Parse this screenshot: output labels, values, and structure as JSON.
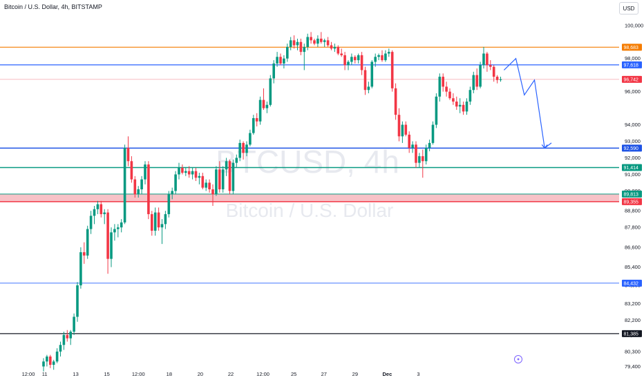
{
  "header": {
    "title": "Bitcoin / U.S. Dollar, 4h, BITSTAMP",
    "currency_button": "USD"
  },
  "watermark": {
    "symbol": "BTCUSD, 4h",
    "name": "Bitcoin / U.S. Dollar"
  },
  "colors": {
    "up": "#089981",
    "down": "#f23645",
    "grid": "#f0f3fa",
    "forecast": "#2962ff"
  },
  "chart_data": {
    "type": "candlestick",
    "title": "Bitcoin / U.S. Dollar, 4h, BITSTAMP",
    "y_axis": {
      "position": "right",
      "tick_labels": [
        "100,000",
        "98,000",
        "96,000",
        "94,000",
        "93,000",
        "92,000",
        "91,000",
        "90,000",
        "88,800",
        "87,800",
        "86,600",
        "85,400",
        "84,300",
        "83,200",
        "82,200",
        "81,300",
        "80,300",
        "79,400"
      ],
      "range": [
        79000,
        100700
      ]
    },
    "x_axis": {
      "tick_labels": [
        "12:00",
        "11",
        "13",
        "15",
        "12:00",
        "18",
        "20",
        "22",
        "12:00",
        "25",
        "27",
        "29",
        "Dec",
        "3"
      ],
      "tick_positions": [
        0.0,
        4.83,
        14.0,
        23.2,
        32.5,
        41.6,
        50.8,
        59.8,
        69.3,
        78.4,
        87.3,
        96.5,
        106.0,
        115.2
      ],
      "bold_labels": [
        "Dec"
      ]
    },
    "series": [
      {
        "name": "BTCUSD",
        "ohlc": [
          [
            79400,
            79900,
            79100,
            79700
          ],
          [
            79700,
            80100,
            79400,
            80000
          ],
          [
            80000,
            80100,
            79300,
            79500
          ],
          [
            79500,
            79800,
            79200,
            79700
          ],
          [
            79700,
            80500,
            79600,
            80300
          ],
          [
            80300,
            80900,
            80000,
            80700
          ],
          [
            80700,
            81500,
            80400,
            81300
          ],
          [
            81300,
            81600,
            80900,
            81100
          ],
          [
            81100,
            81600,
            80700,
            81500
          ],
          [
            81500,
            82600,
            81300,
            82400
          ],
          [
            82400,
            84500,
            82100,
            84300
          ],
          [
            84300,
            86600,
            84100,
            86300
          ],
          [
            86300,
            86900,
            85600,
            86100
          ],
          [
            86100,
            87900,
            85900,
            87700
          ],
          [
            87700,
            88800,
            87400,
            88500
          ],
          [
            88500,
            89100,
            88000,
            88900
          ],
          [
            88900,
            89400,
            88600,
            89200
          ],
          [
            89200,
            89400,
            88400,
            88600
          ],
          [
            88600,
            88900,
            88000,
            88700
          ],
          [
            88700,
            88900,
            85000,
            85900
          ],
          [
            85900,
            87800,
            85400,
            87500
          ],
          [
            87500,
            88000,
            87000,
            87700
          ],
          [
            87700,
            88000,
            87200,
            87800
          ],
          [
            87800,
            88300,
            87500,
            88100
          ],
          [
            88100,
            92800,
            88000,
            92600
          ],
          [
            92600,
            93300,
            91500,
            91800
          ],
          [
            91800,
            92100,
            90500,
            90700
          ],
          [
            90700,
            90900,
            89600,
            89800
          ],
          [
            89800,
            90300,
            89600,
            90100
          ],
          [
            90100,
            90900,
            89800,
            90700
          ],
          [
            90700,
            91800,
            90400,
            91600
          ],
          [
            91600,
            91800,
            88300,
            88600
          ],
          [
            88600,
            88800,
            87300,
            87600
          ],
          [
            87600,
            89000,
            87300,
            88700
          ],
          [
            88700,
            89000,
            87600,
            87800
          ],
          [
            87800,
            88300,
            86800,
            88000
          ],
          [
            88000,
            88800,
            87700,
            88600
          ],
          [
            88600,
            90000,
            88400,
            89800
          ],
          [
            89800,
            90200,
            89500,
            90000
          ],
          [
            90000,
            91200,
            89800,
            91000
          ],
          [
            91000,
            91700,
            90700,
            91400
          ],
          [
            91400,
            91600,
            91000,
            91100
          ],
          [
            91100,
            91400,
            90900,
            91200
          ],
          [
            91200,
            91500,
            90800,
            91000
          ],
          [
            91000,
            91400,
            90700,
            91200
          ],
          [
            91200,
            91400,
            90600,
            90800
          ],
          [
            90800,
            91100,
            90400,
            90900
          ],
          [
            90900,
            91100,
            90100,
            90200
          ],
          [
            90200,
            90700,
            90000,
            90500
          ],
          [
            90500,
            90700,
            89900,
            90100
          ],
          [
            90100,
            90400,
            89100,
            89800
          ],
          [
            89800,
            91500,
            89700,
            91300
          ],
          [
            91300,
            91800,
            89900,
            90100
          ],
          [
            90100,
            91500,
            89900,
            91300
          ],
          [
            91300,
            92000,
            90900,
            91800
          ],
          [
            91800,
            91900,
            89800,
            90000
          ],
          [
            90000,
            91900,
            89800,
            91700
          ],
          [
            91700,
            92200,
            91400,
            92000
          ],
          [
            92000,
            93100,
            91800,
            92900
          ],
          [
            92900,
            93000,
            91900,
            92300
          ],
          [
            92300,
            93000,
            92100,
            92800
          ],
          [
            92800,
            93700,
            92700,
            93500
          ],
          [
            93500,
            94600,
            93400,
            94400
          ],
          [
            94400,
            94700,
            93900,
            94200
          ],
          [
            94200,
            95700,
            94000,
            95500
          ],
          [
            95500,
            96200,
            94900,
            95000
          ],
          [
            95000,
            95400,
            94700,
            95200
          ],
          [
            95200,
            97000,
            95100,
            96800
          ],
          [
            96800,
            97900,
            96500,
            97700
          ],
          [
            97700,
            98400,
            97500,
            98100
          ],
          [
            98100,
            98300,
            97600,
            97700
          ],
          [
            97700,
            98200,
            97400,
            98000
          ],
          [
            98000,
            98900,
            97800,
            98700
          ],
          [
            98700,
            99300,
            98500,
            99100
          ],
          [
            99100,
            99400,
            98600,
            98800
          ],
          [
            98800,
            99200,
            98500,
            99000
          ],
          [
            99000,
            99200,
            98200,
            98400
          ],
          [
            98400,
            98900,
            97300,
            98700
          ],
          [
            98700,
            99500,
            98500,
            99300
          ],
          [
            99300,
            99600,
            98900,
            99100
          ],
          [
            99100,
            99200,
            98800,
            98900
          ],
          [
            98900,
            99400,
            98700,
            99200
          ],
          [
            99200,
            99600,
            98900,
            99000
          ],
          [
            99000,
            99200,
            98700,
            99100
          ],
          [
            99100,
            99300,
            98700,
            98800
          ],
          [
            98800,
            99000,
            98500,
            98600
          ],
          [
            98600,
            98900,
            98400,
            98700
          ],
          [
            98700,
            98800,
            98200,
            98300
          ],
          [
            98300,
            98600,
            98100,
            98200
          ],
          [
            98200,
            98400,
            97300,
            97600
          ],
          [
            97600,
            97900,
            97300,
            97800
          ],
          [
            97800,
            98300,
            97600,
            98100
          ],
          [
            98100,
            98200,
            97700,
            97900
          ],
          [
            97900,
            98300,
            97700,
            98200
          ],
          [
            98200,
            98400,
            97000,
            97300
          ],
          [
            97300,
            97500,
            95800,
            96100
          ],
          [
            96100,
            96600,
            95900,
            96300
          ],
          [
            96300,
            97900,
            96200,
            97800
          ],
          [
            97800,
            98300,
            97500,
            98100
          ],
          [
            98100,
            98300,
            97900,
            98200
          ],
          [
            98200,
            98500,
            97800,
            97900
          ],
          [
            97900,
            98500,
            97800,
            98300
          ],
          [
            98300,
            98600,
            98100,
            98400
          ],
          [
            98400,
            98500,
            96000,
            96200
          ],
          [
            96200,
            96500,
            94300,
            94600
          ],
          [
            94600,
            95000,
            93000,
            93300
          ],
          [
            93300,
            94200,
            92900,
            94000
          ],
          [
            94000,
            94200,
            93300,
            93400
          ],
          [
            93400,
            93600,
            92300,
            92600
          ],
          [
            92600,
            93000,
            92300,
            92800
          ],
          [
            92800,
            93000,
            91400,
            91700
          ],
          [
            91700,
            92300,
            91400,
            92100
          ],
          [
            92100,
            92500,
            90800,
            91800
          ],
          [
            91800,
            92800,
            91600,
            92600
          ],
          [
            92600,
            93100,
            92400,
            92900
          ],
          [
            92900,
            94200,
            92800,
            94000
          ],
          [
            94000,
            95900,
            93800,
            95700
          ],
          [
            95700,
            97100,
            95400,
            96900
          ],
          [
            96900,
            97100,
            96000,
            96300
          ],
          [
            96300,
            96600,
            95700,
            96000
          ],
          [
            96000,
            96200,
            95500,
            95600
          ],
          [
            95600,
            95900,
            95200,
            95400
          ],
          [
            95400,
            95700,
            94900,
            95100
          ],
          [
            95100,
            95600,
            94700,
            95200
          ],
          [
            95200,
            95400,
            94600,
            94800
          ],
          [
            94800,
            95600,
            94600,
            95400
          ],
          [
            95400,
            96300,
            95200,
            96100
          ],
          [
            96100,
            97200,
            95900,
            97000
          ],
          [
            97000,
            97400,
            96100,
            96300
          ],
          [
            96300,
            97800,
            96200,
            97600
          ],
          [
            97600,
            98700,
            97400,
            98300
          ],
          [
            98300,
            98400,
            97200,
            97600
          ],
          [
            97600,
            97900,
            97300,
            97500
          ],
          [
            97500,
            97600,
            96600,
            96900
          ],
          [
            96900,
            97000,
            96500,
            96700
          ],
          [
            96700,
            96900,
            96600,
            96750
          ]
        ]
      }
    ],
    "forecast_path": [
      {
        "index": 136,
        "price": 97300
      },
      {
        "index": 139.5,
        "price": 98000
      },
      {
        "index": 142,
        "price": 95800
      },
      {
        "index": 145,
        "price": 96700
      },
      {
        "index": 148,
        "price": 92590
      },
      {
        "index": 150,
        "price": 92900
      }
    ],
    "horizontal_levels": [
      {
        "price": 98683,
        "label": "98,683",
        "color": "#f57c00",
        "width": 1.2
      },
      {
        "price": 97618,
        "label": "97,618",
        "color": "#2962ff",
        "width": 1.2
      },
      {
        "price": 96742,
        "label": "96,742",
        "color": "#f6a5ac",
        "width": 0.8,
        "tag_color": "#f23645"
      },
      {
        "price": 92590,
        "label": "92,590",
        "color": "#1e53e5",
        "width": 1.5
      },
      {
        "price": 91414,
        "label": "91,414",
        "color": "#089981",
        "width": 1.5
      },
      {
        "price": 89813,
        "label": "89,813",
        "color": "#089981",
        "width": 1
      },
      {
        "price": 89355,
        "label": "89,355",
        "color": "#f23645",
        "width": 1.5
      },
      {
        "price": 84432,
        "label": "84,432",
        "color": "#2962ff",
        "width": 0.8
      },
      {
        "price": 81385,
        "label": "81,385",
        "color": "#131722",
        "width": 1.2
      }
    ],
    "zone": {
      "top": 89813,
      "bottom": 89355,
      "color": "#f7c2c7"
    },
    "grid": false
  }
}
